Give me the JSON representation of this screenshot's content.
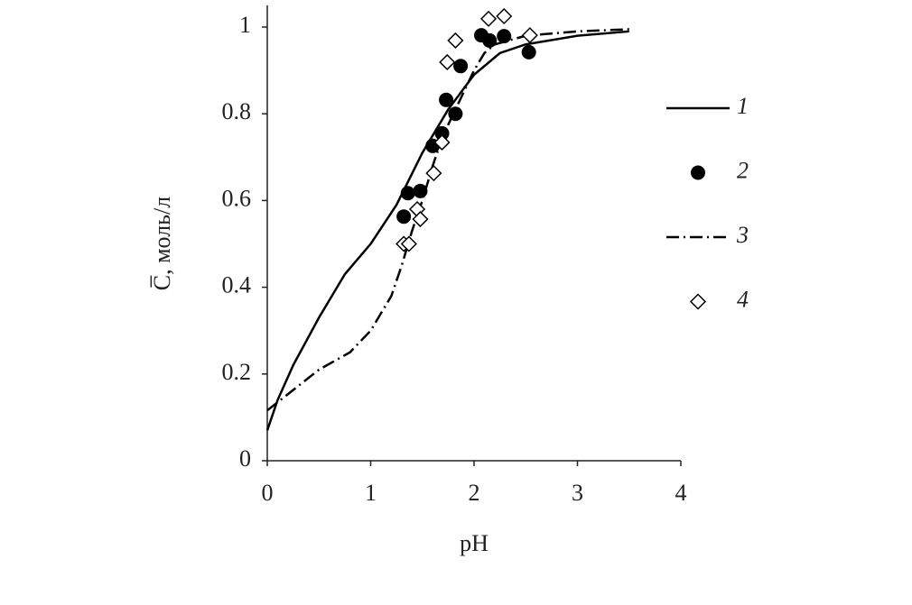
{
  "chart_data": {
    "type": "line",
    "x_label": "pH",
    "y_label": "C̅, моль/л",
    "xlim": [
      0,
      4
    ],
    "xticks": [
      0,
      1,
      2,
      3,
      4
    ],
    "ylim": [
      0,
      1.05
    ],
    "yticks": [
      0,
      0.2,
      0.4,
      0.6,
      0.8,
      1
    ],
    "series": [
      {
        "name": "1",
        "color": "#000000",
        "mode": "line",
        "dash": "solid",
        "x": [
          0,
          0.1,
          0.25,
          0.5,
          0.75,
          1,
          1.25,
          1.5,
          1.75,
          2,
          2.25,
          2.5,
          3,
          3.5
        ],
        "values": [
          0.07,
          0.14,
          0.22,
          0.33,
          0.43,
          0.5,
          0.59,
          0.71,
          0.81,
          0.89,
          0.94,
          0.96,
          0.98,
          0.99
        ]
      },
      {
        "name": "2",
        "color": "#000000",
        "mode": "markers",
        "marker": "circle",
        "x": [
          1.32,
          1.36,
          1.48,
          1.6,
          1.69,
          1.73,
          1.82,
          1.87,
          2.07,
          2.15,
          2.29,
          2.53
        ],
        "values": [
          0.563,
          0.617,
          0.622,
          0.726,
          0.755,
          0.832,
          0.8,
          0.91,
          0.981,
          0.969,
          0.979,
          0.942
        ]
      },
      {
        "name": "3",
        "color": "#000000",
        "mode": "line",
        "dash": "dashdot",
        "x": [
          0,
          0.5,
          0.8,
          1,
          1.2,
          1.3,
          1.4,
          1.5,
          1.6,
          1.7,
          1.8,
          1.9,
          2,
          2.1,
          2.2,
          2.5,
          3,
          3.5
        ],
        "values": [
          0.116,
          0.21,
          0.25,
          0.3,
          0.38,
          0.45,
          0.53,
          0.6,
          0.68,
          0.75,
          0.8,
          0.85,
          0.9,
          0.94,
          0.96,
          0.98,
          0.99,
          0.995
        ]
      },
      {
        "name": "4",
        "color": "#000000",
        "mode": "markers",
        "marker": "diamond",
        "x": [
          1.32,
          1.37,
          1.45,
          1.48,
          1.61,
          1.69,
          1.74,
          1.82,
          2.14,
          2.29,
          2.54
        ],
        "values": [
          0.5,
          0.5,
          0.58,
          0.557,
          0.663,
          0.734,
          0.919,
          0.969,
          1.019,
          1.025,
          0.981
        ]
      }
    ]
  }
}
